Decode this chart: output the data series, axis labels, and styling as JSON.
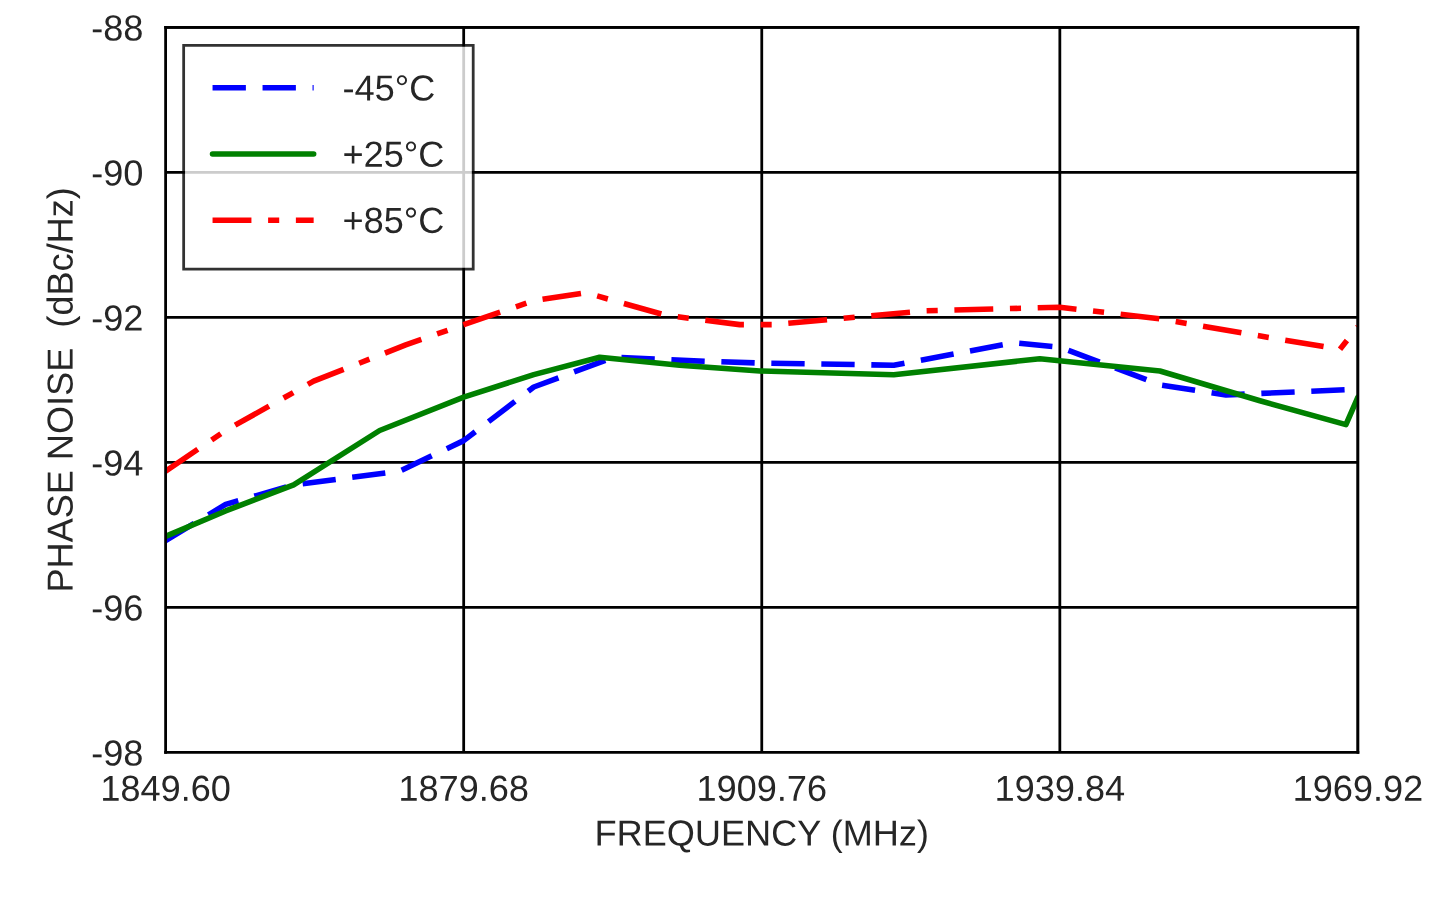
{
  "chart_data": {
    "type": "line",
    "xlabel": "FREQUENCY (MHz)",
    "ylabel": "PHASE NOISE  (dBc/Hz)",
    "xlim": [
      1849.6,
      1969.92
    ],
    "ylim": [
      -98,
      -88
    ],
    "xticks": [
      {
        "value": 1849.6,
        "label": "1849.60"
      },
      {
        "value": 1879.68,
        "label": "1879.68"
      },
      {
        "value": 1909.76,
        "label": "1909.76"
      },
      {
        "value": 1939.84,
        "label": "1939.84"
      },
      {
        "value": 1969.92,
        "label": "1969.92"
      }
    ],
    "yticks": [
      -98,
      -96,
      -94,
      -92,
      -90,
      -88
    ],
    "grid": true,
    "legend": "top left",
    "series": [
      {
        "name": "-45°C",
        "color": "#0000ff",
        "line_style": "dashed",
        "x": [
          1849.6,
          1855.66,
          1862.52,
          1873.22,
          1879.68,
          1886.75,
          1894.82,
          1902.9,
          1909.56,
          1923.08,
          1935.19,
          1939.84,
          1949.94,
          1956.6,
          1969.92
        ],
        "values": [
          -95.08,
          -94.58,
          -94.31,
          -94.12,
          -93.7,
          -92.96,
          -92.55,
          -92.6,
          -92.63,
          -92.66,
          -92.35,
          -92.41,
          -92.93,
          -93.07,
          -92.99
        ]
      },
      {
        "name": "+25°C",
        "color": "#008000",
        "line_style": "solid",
        "x": [
          1849.6,
          1855.66,
          1862.52,
          1871.2,
          1879.68,
          1886.75,
          1893.4,
          1901.48,
          1909.56,
          1923.08,
          1937.82,
          1949.94,
          1960.03,
          1968.71,
          1969.92
        ],
        "values": [
          -95.02,
          -94.67,
          -94.31,
          -93.56,
          -93.1,
          -92.79,
          -92.55,
          -92.66,
          -92.74,
          -92.79,
          -92.57,
          -92.74,
          -93.15,
          -93.48,
          -93.1
        ]
      },
      {
        "name": "+85°C",
        "color": "#ff0000",
        "line_style": "dashdot",
        "x": [
          1849.6,
          1855.66,
          1864.54,
          1873.83,
          1879.68,
          1886.75,
          1891.99,
          1900.07,
          1907.54,
          1910.97,
          1926.31,
          1939.84,
          1949.94,
          1960.64,
          1968.11,
          1969.92
        ],
        "values": [
          -94.12,
          -93.56,
          -92.88,
          -92.38,
          -92.1,
          -91.77,
          -91.66,
          -91.97,
          -92.1,
          -92.1,
          -91.91,
          -91.86,
          -92.02,
          -92.27,
          -92.44,
          -92.13
        ]
      }
    ]
  }
}
